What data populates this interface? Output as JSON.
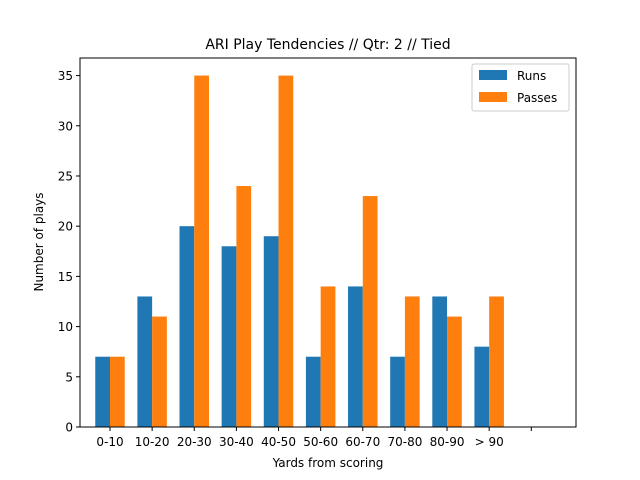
{
  "chart_data": {
    "type": "bar",
    "title": "ARI Play Tendencies // Qtr: 2 // Tied",
    "xlabel": "Yards from scoring",
    "ylabel": "Number of plays",
    "categories": [
      "0-10",
      "10-20",
      "20-30",
      "30-40",
      "40-50",
      "50-60",
      "60-70",
      "70-80",
      "80-90",
      "> 90",
      ""
    ],
    "series": [
      {
        "name": "Runs",
        "color": "#1f77b4",
        "values": [
          7,
          13,
          20,
          18,
          19,
          7,
          14,
          7,
          13,
          8,
          null
        ]
      },
      {
        "name": "Passes",
        "color": "#ff7f0e",
        "values": [
          7,
          11,
          35,
          24,
          35,
          14,
          23,
          13,
          11,
          13,
          null
        ]
      }
    ],
    "ylim": [
      0,
      36.75
    ],
    "yticks": [
      0,
      5,
      10,
      15,
      20,
      25,
      30,
      35
    ],
    "legend": "upper right",
    "grid": false
  }
}
